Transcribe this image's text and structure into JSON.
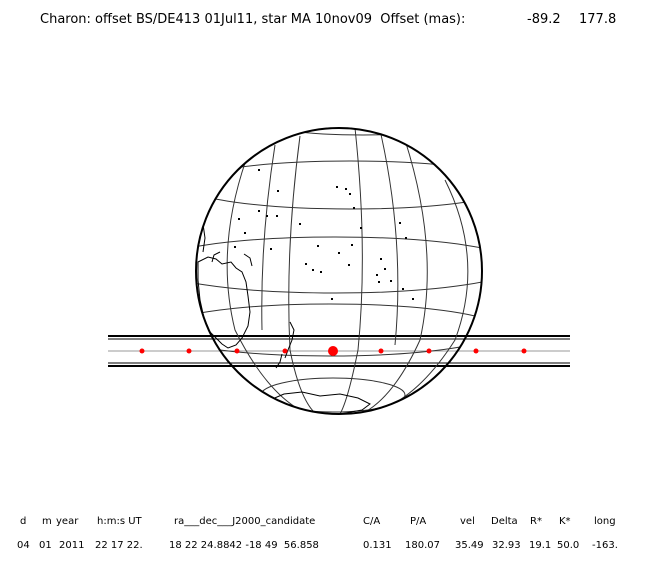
{
  "title": {
    "text": "Charon: offset BS/DE413 01Jul11, star MA 10nov09  Offset (mas):",
    "offset_ra": "-89.2",
    "offset_dec": "177.8"
  },
  "colors": {
    "path_dot": "#ff0000",
    "ink": "#000000",
    "grid": "#333333",
    "centerline": "#999999"
  },
  "event_table": {
    "headers": [
      "d",
      "m",
      "year",
      "h:m:s UT",
      "ra___dec___J2000_candidate",
      "C/A",
      "P/A",
      "vel",
      "Delta",
      "R*",
      "K*",
      "long"
    ],
    "values": [
      "04",
      "01",
      "2011",
      "22 17 22.",
      "18 22 24.8842 -18 49  56.858",
      "0.131",
      "180.07",
      "35.49",
      "32.93",
      "19.1",
      "50.0",
      "-163."
    ]
  }
}
